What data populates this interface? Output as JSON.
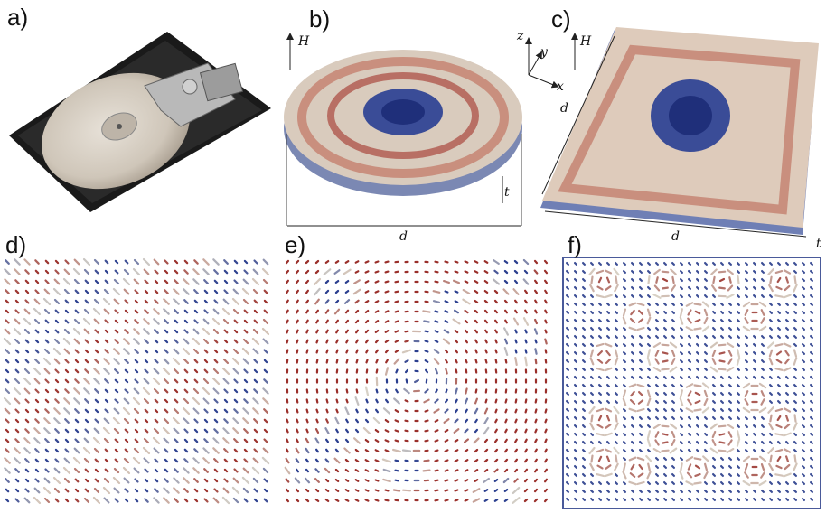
{
  "panels": {
    "a": "a)",
    "b": "b)",
    "c": "c)",
    "d": "d)",
    "e": "e)",
    "f": "f)"
  },
  "labels": {
    "field": "H",
    "diameter": "d",
    "thickness": "t",
    "axis_x": "x",
    "axis_y": "y",
    "axis_z": "z"
  },
  "colors": {
    "up": "#2b3f8f",
    "in_plane": "#d8d2c6",
    "down": "#9a2f2a"
  }
}
